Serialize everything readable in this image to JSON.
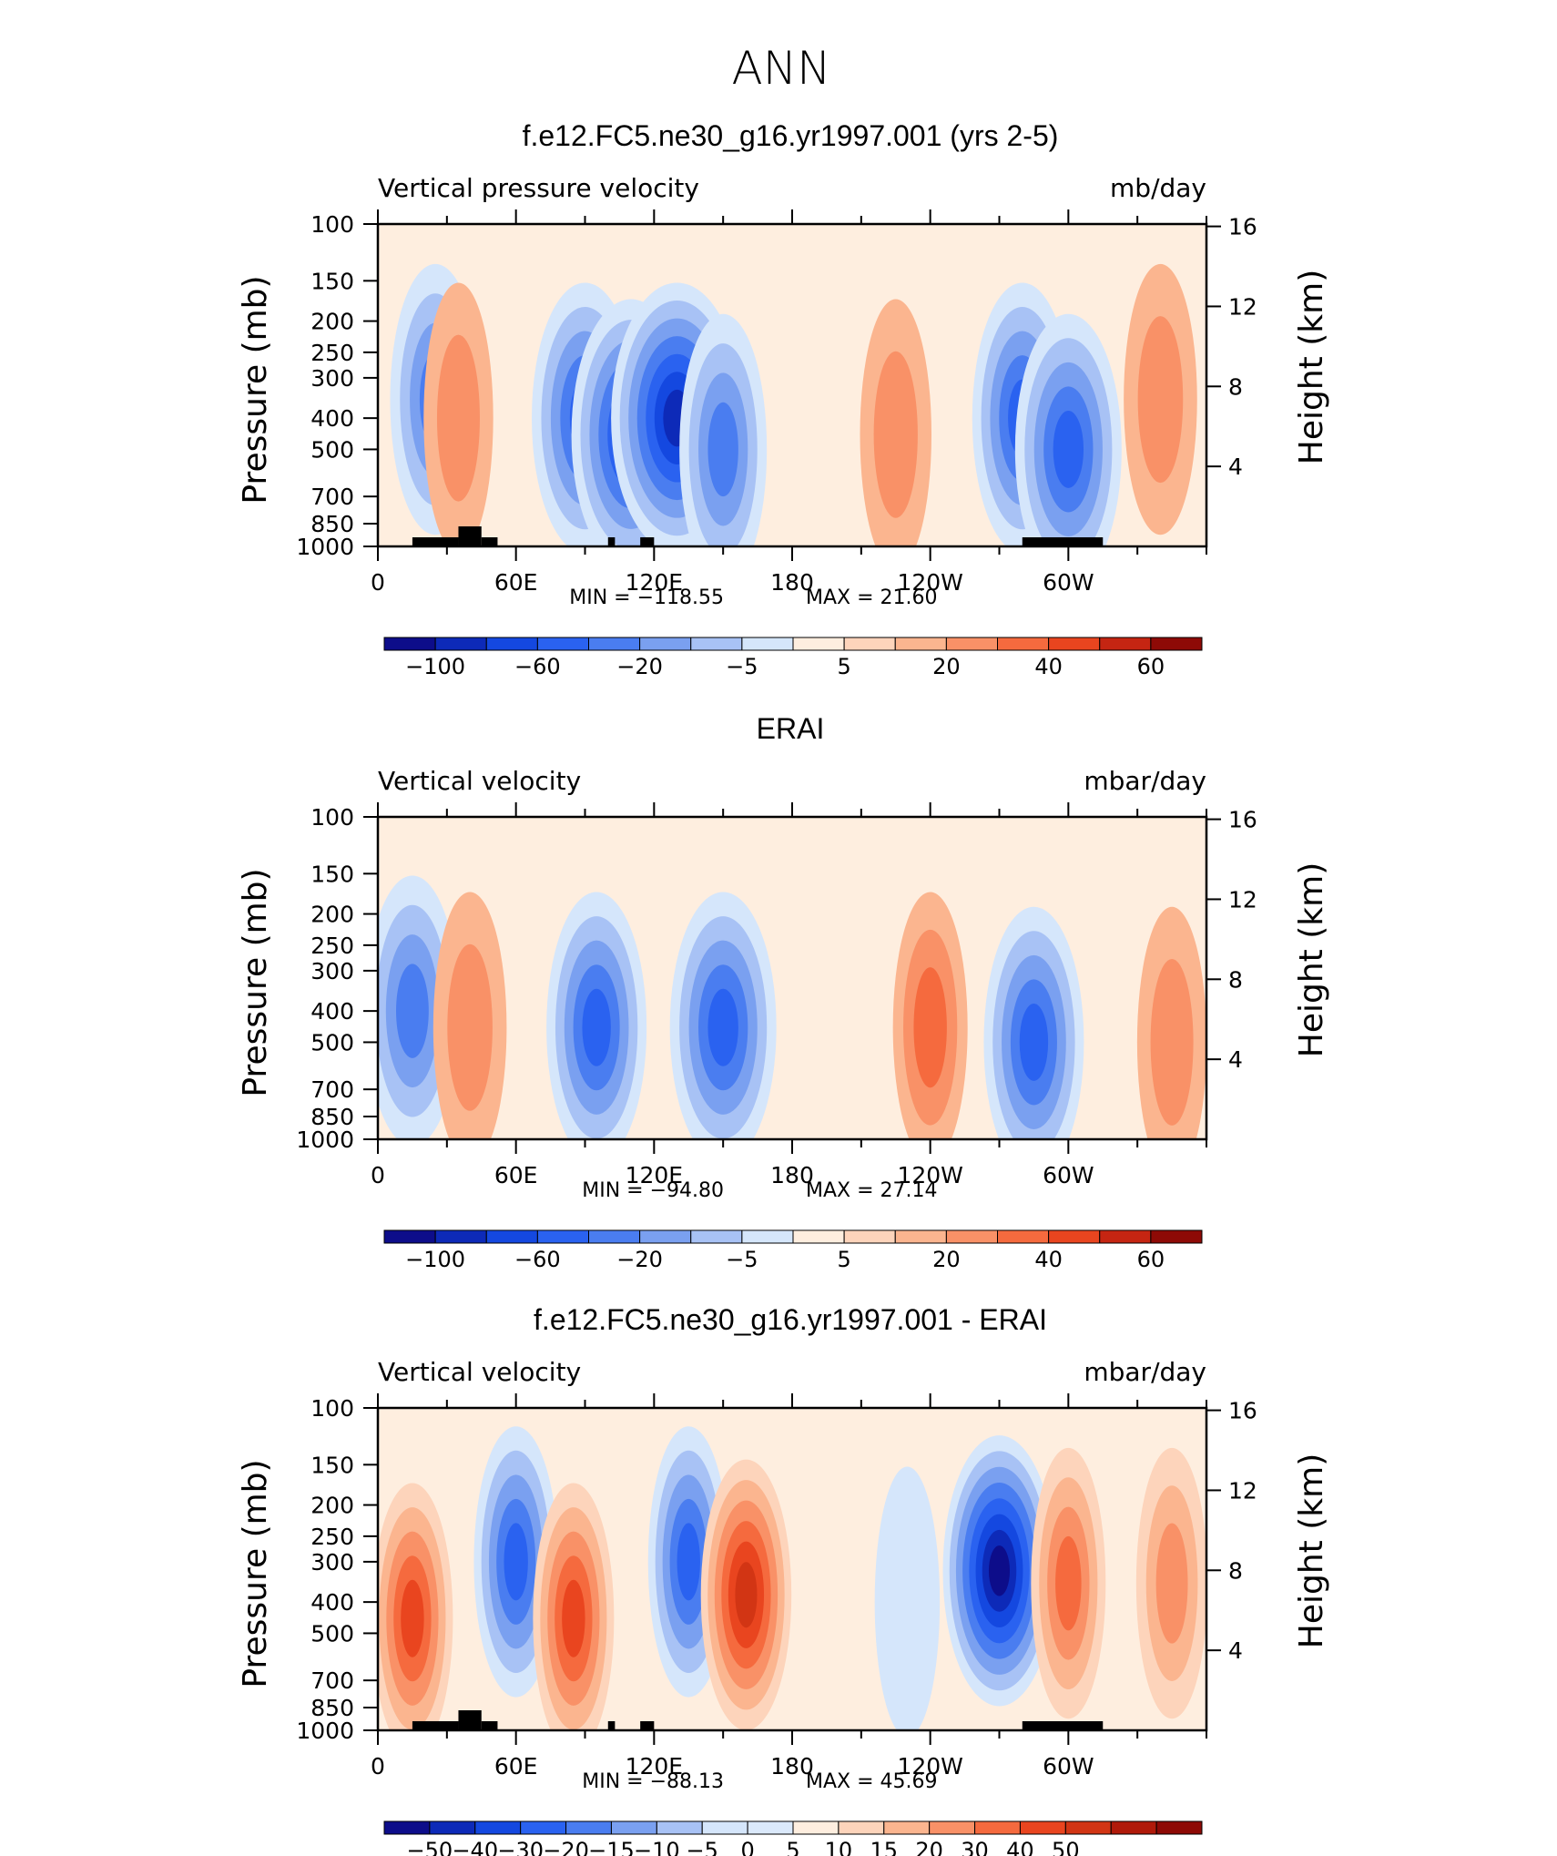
{
  "figure": {
    "title": "ANN"
  },
  "x_ticks": [
    "0",
    "60E",
    "120E",
    "180",
    "120W",
    "60W"
  ],
  "pressure_ticks": [
    "100",
    "150",
    "200",
    "250",
    "300",
    "400",
    "500",
    "700",
    "850",
    "1000"
  ],
  "height_ticks": [
    "16",
    "12",
    "8",
    "4"
  ],
  "pressure_axis_label": "Pressure (mb)",
  "height_axis_label": "Height (km)",
  "chart_data": [
    {
      "type": "heatmap",
      "title": "f.e12.FC5.ne30_g16.yr1997.001 (yrs 2-5)",
      "variable": "Vertical pressure velocity",
      "units": "mb/day",
      "min_label": "MIN =  −118.55",
      "max_label": "MAX =   21.60",
      "min": -118.55,
      "max": 21.6,
      "levels": [
        -120,
        -100,
        -80,
        -60,
        -40,
        -20,
        -10,
        -5,
        0,
        5,
        10,
        20,
        30,
        40,
        50,
        60
      ],
      "colorbar_labels": [
        "−100",
        "−60",
        "−20",
        "−5",
        "5",
        "20",
        "40",
        "60"
      ],
      "colorbar_label_levels": [
        -100,
        -60,
        -20,
        -5,
        5,
        20,
        40,
        60
      ],
      "has_topography": true,
      "cells": [
        [
          {
            "lon": 25,
            "p": 350,
            "v": -45
          },
          {
            "lon": 35,
            "p": 400,
            "v": 12
          },
          {
            "lon": 90,
            "p": 400,
            "v": -70
          },
          {
            "lon": 110,
            "p": 450,
            "v": -90
          },
          {
            "lon": 130,
            "p": 400,
            "v": -110
          },
          {
            "lon": 150,
            "p": 500,
            "v": -40
          },
          {
            "lon": 225,
            "p": 450,
            "v": 15
          },
          {
            "lon": 280,
            "p": 400,
            "v": -60
          },
          {
            "lon": 300,
            "p": 500,
            "v": -70
          },
          {
            "lon": 340,
            "p": 350,
            "v": 18
          }
        ]
      ]
    },
    {
      "type": "heatmap",
      "title": "ERAI",
      "variable": "Vertical velocity",
      "units": "mbar/day",
      "min_label": "MIN =  −94.80",
      "max_label": "MAX =   27.14",
      "min": -94.8,
      "max": 27.14,
      "levels": [
        -120,
        -100,
        -80,
        -60,
        -40,
        -20,
        -10,
        -5,
        0,
        5,
        10,
        20,
        30,
        40,
        50,
        60
      ],
      "colorbar_labels": [
        "−100",
        "−60",
        "−20",
        "−5",
        "5",
        "20",
        "40",
        "60"
      ],
      "colorbar_label_levels": [
        -100,
        -60,
        -20,
        -5,
        5,
        20,
        40,
        60
      ],
      "has_topography": false,
      "cells": [
        [
          {
            "lon": 15,
            "p": 400,
            "v": -50
          },
          {
            "lon": 40,
            "p": 450,
            "v": 18
          },
          {
            "lon": 95,
            "p": 450,
            "v": -60
          },
          {
            "lon": 150,
            "p": 450,
            "v": -70
          },
          {
            "lon": 240,
            "p": 450,
            "v": 20
          },
          {
            "lon": 285,
            "p": 500,
            "v": -60
          },
          {
            "lon": 345,
            "p": 500,
            "v": 12
          }
        ]
      ]
    },
    {
      "type": "heatmap",
      "title": "f.e12.FC5.ne30_g16.yr1997.001 - ERAI",
      "variable": "Vertical velocity",
      "units": "mbar/day",
      "min_label": "MIN =  −88.13",
      "max_label": "MAX =   45.69",
      "min": -88.13,
      "max": 45.69,
      "levels": [
        -60,
        -50,
        -40,
        -30,
        -20,
        -15,
        -10,
        -5,
        0,
        5,
        10,
        15,
        20,
        30,
        40,
        50,
        60
      ],
      "colorbar_labels": [
        "−50",
        "−40",
        "−30",
        "−20",
        "−15",
        "−10",
        "−5",
        "0",
        "5",
        "10",
        "15",
        "20",
        "30",
        "40",
        "50"
      ],
      "colorbar_label_levels": [
        -50,
        -40,
        -30,
        -20,
        -15,
        -10,
        -5,
        0,
        5,
        10,
        15,
        20,
        30,
        40,
        50
      ],
      "has_topography": true,
      "cells": [
        [
          {
            "lon": 15,
            "p": 450,
            "v": 30
          },
          {
            "lon": 60,
            "p": 300,
            "v": -35
          },
          {
            "lon": 85,
            "p": 450,
            "v": 30
          },
          {
            "lon": 135,
            "p": 300,
            "v": -30
          },
          {
            "lon": 160,
            "p": 380,
            "v": 45
          },
          {
            "lon": 230,
            "p": 400,
            "v": -5
          },
          {
            "lon": 270,
            "p": 320,
            "v": -80
          },
          {
            "lon": 300,
            "p": 350,
            "v": 20
          },
          {
            "lon": 345,
            "p": 350,
            "v": 15
          }
        ]
      ]
    }
  ]
}
